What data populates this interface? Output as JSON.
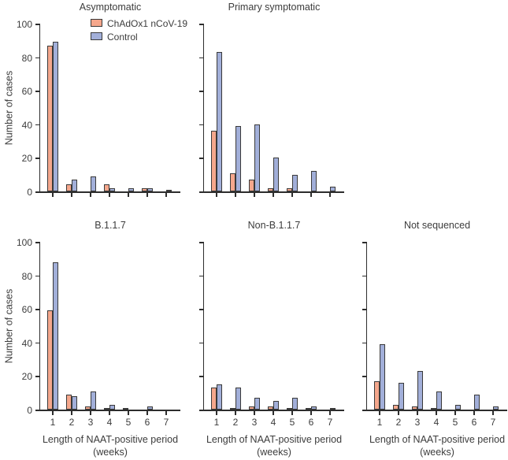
{
  "figure": {
    "ylabel": "Number of cases",
    "xlabel_line1": "Length of NAAT-positive period",
    "xlabel_line2": "(weeks)",
    "legend": [
      {
        "name": "ChAdOx1 nCoV-19",
        "color": "#F5A78C"
      },
      {
        "name": "Control",
        "color": "#A2AFD9"
      }
    ],
    "colors": {
      "chadox": "#F5A78C",
      "control": "#A2AFD9",
      "bar_outline": "#3a3a3a",
      "axis": "#2d2d2d",
      "text": "#3c3c3c",
      "background": "#ffffff"
    }
  },
  "chart_data": {
    "type": "bar",
    "categories": [
      1,
      2,
      3,
      4,
      5,
      6,
      7
    ],
    "xlabel": "Length of NAAT-positive period (weeks)",
    "ylabel": "Number of cases",
    "ylim": [
      0,
      100
    ],
    "yticks": [
      0,
      20,
      40,
      60,
      80,
      100
    ],
    "grid": false,
    "legend_position": "inside top-left panel, upper left",
    "panels": [
      {
        "title": "Asymptomatic",
        "row": 0,
        "col": 0,
        "show_y_tick_labels": true,
        "show_x_tick_labels": false,
        "show_legend": true,
        "series": [
          {
            "name": "ChAdOx1 nCoV-19",
            "values": [
              87,
              4,
              0,
              4,
              0,
              2,
              0
            ]
          },
          {
            "name": "Control",
            "values": [
              89,
              7,
              9,
              2,
              2,
              2,
              1
            ]
          }
        ]
      },
      {
        "title": "Primary symptomatic",
        "row": 0,
        "col": 1,
        "show_y_tick_labels": false,
        "show_x_tick_labels": false,
        "show_legend": false,
        "series": [
          {
            "name": "ChAdOx1 nCoV-19",
            "values": [
              36,
              11,
              7,
              2,
              2,
              0,
              0
            ]
          },
          {
            "name": "Control",
            "values": [
              83,
              39,
              40,
              20,
              10,
              12,
              3
            ]
          }
        ]
      },
      {
        "title": "B.1.1.7",
        "row": 1,
        "col": 0,
        "show_y_tick_labels": true,
        "show_x_tick_labels": true,
        "show_legend": false,
        "series": [
          {
            "name": "ChAdOx1 nCoV-19",
            "values": [
              59,
              9,
              2,
              1,
              1,
              0,
              0
            ]
          },
          {
            "name": "Control",
            "values": [
              88,
              8,
              11,
              3,
              0,
              2,
              0
            ]
          }
        ]
      },
      {
        "title": "Non-B.1.1.7",
        "row": 1,
        "col": 1,
        "show_y_tick_labels": false,
        "show_x_tick_labels": true,
        "show_legend": false,
        "series": [
          {
            "name": "ChAdOx1 nCoV-19",
            "values": [
              13,
              1,
              2,
              2,
              1,
              1,
              0
            ]
          },
          {
            "name": "Control",
            "values": [
              15,
              13,
              7,
              5,
              7,
              2,
              1
            ]
          }
        ]
      },
      {
        "title": "Not sequenced",
        "row": 1,
        "col": 2,
        "show_y_tick_labels": false,
        "show_x_tick_labels": true,
        "show_legend": false,
        "series": [
          {
            "name": "ChAdOx1 nCoV-19",
            "values": [
              17,
              3,
              2,
              1,
              0,
              0,
              0
            ]
          },
          {
            "name": "Control",
            "values": [
              39,
              16,
              23,
              11,
              3,
              9,
              2
            ]
          }
        ]
      }
    ]
  }
}
